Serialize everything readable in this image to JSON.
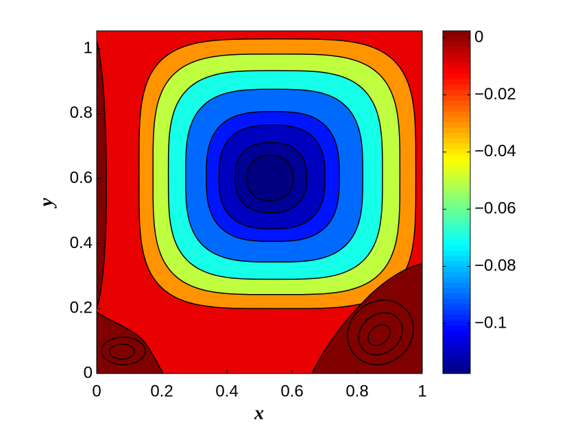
{
  "chart_data": {
    "type": "contour",
    "x_label": "x",
    "y_label": "y",
    "xlim": [
      0,
      1
    ],
    "ylim": [
      0,
      1.055
    ],
    "xticks": [
      0,
      0.2,
      0.4,
      0.6,
      0.8,
      1
    ],
    "yticks": [
      0,
      0.2,
      0.4,
      0.6,
      0.8,
      1
    ],
    "levels": [
      -0.01,
      -0.03,
      -0.05,
      -0.07,
      -0.09,
      -0.1,
      -0.11,
      -0.115
    ],
    "colormap": "jet",
    "clim": [
      -0.1175,
      0.0024
    ],
    "colorbar_ticks": [
      0,
      {
        "value": -0.02,
        "label": "−0.02"
      },
      {
        "value": -0.04,
        "label": "−0.04"
      },
      {
        "value": -0.06,
        "label": "−0.06"
      },
      {
        "value": -0.08,
        "label": "−0.08"
      },
      {
        "value": -0.1,
        "label": "−0.1"
      }
    ]
  }
}
